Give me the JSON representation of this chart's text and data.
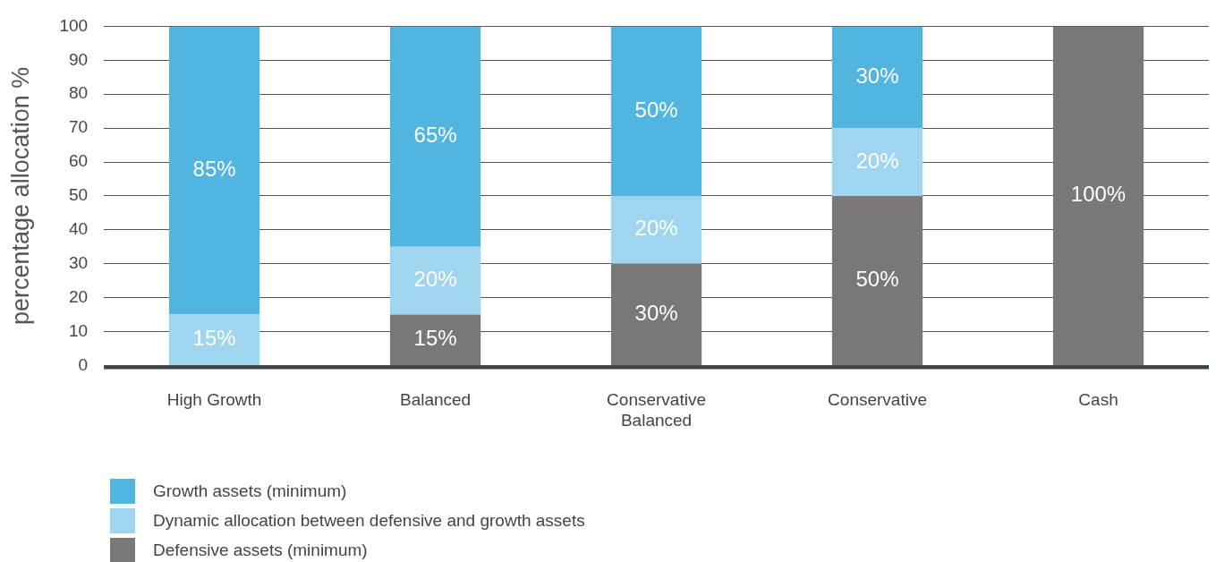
{
  "chart_data": {
    "type": "bar",
    "stacked": true,
    "ylabel": "percentage allocation %",
    "categories": [
      "High Growth",
      "Balanced",
      "Conservative Balanced",
      "Conservative",
      "Cash"
    ],
    "series": [
      {
        "name": "Defensive assets (minimum)",
        "color": "#7a7876",
        "values": [
          0,
          15,
          30,
          50,
          100
        ],
        "value_labels": [
          null,
          "15%",
          "30%",
          "50%",
          "100%"
        ]
      },
      {
        "name": "Dynamic allocation between defensive and growth assets",
        "color": "#9fd5ee",
        "values": [
          15,
          20,
          20,
          20,
          0
        ],
        "value_labels": [
          "15%",
          "20%",
          "20%",
          "20%",
          null
        ]
      },
      {
        "name": "Growth assets (minimum)",
        "color": "#52b5e0",
        "values": [
          85,
          65,
          50,
          30,
          0
        ],
        "value_labels": [
          "85%",
          "65%",
          "50%",
          "30%",
          null
        ]
      }
    ],
    "ylim": [
      0,
      100
    ],
    "yticks": [
      0,
      10,
      20,
      30,
      40,
      50,
      60,
      70,
      80,
      90,
      100
    ],
    "grid": "y",
    "legend": "bottom left"
  }
}
